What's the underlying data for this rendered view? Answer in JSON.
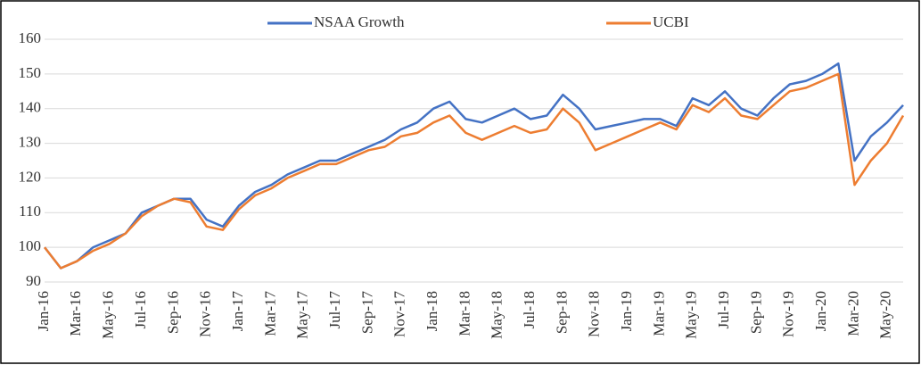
{
  "chart_data": {
    "type": "line",
    "categories": [
      "Jan-16",
      null,
      "Mar-16",
      null,
      "May-16",
      null,
      "Jul-16",
      null,
      "Sep-16",
      null,
      "Nov-16",
      null,
      "Jan-17",
      null,
      "Mar-17",
      null,
      "May-17",
      null,
      "Jul-17",
      null,
      "Sep-17",
      null,
      "Nov-17",
      null,
      "Jan-18",
      null,
      "Mar-18",
      null,
      "May-18",
      null,
      "Jul-18",
      null,
      "Sep-18",
      null,
      "Nov-18",
      null,
      "Jan-19",
      null,
      "Mar-19",
      null,
      "May-19",
      null,
      "Jul-19",
      null,
      "Sep-19",
      null,
      "Nov-19",
      null,
      "Jan-20",
      null,
      "Mar-20",
      null,
      "May-20",
      null
    ],
    "series": [
      {
        "name": "NSAA Growth",
        "color": "#4472c4",
        "values": [
          100,
          94,
          96,
          100,
          102,
          104,
          110,
          112,
          114,
          114,
          108,
          106,
          112,
          116,
          118,
          121,
          123,
          125,
          125,
          127,
          129,
          131,
          134,
          136,
          140,
          142,
          137,
          136,
          138,
          140,
          137,
          138,
          144,
          140,
          134,
          135,
          136,
          137,
          137,
          135,
          143,
          141,
          145,
          140,
          138,
          143,
          147,
          148,
          150,
          153,
          125,
          132,
          136,
          141
        ]
      },
      {
        "name": "UCBI",
        "color": "#ed7d31",
        "values": [
          100,
          94,
          96,
          99,
          101,
          104,
          109,
          112,
          114,
          113,
          106,
          105,
          111,
          115,
          117,
          120,
          122,
          124,
          124,
          126,
          128,
          129,
          132,
          133,
          136,
          138,
          133,
          131,
          133,
          135,
          133,
          134,
          140,
          136,
          128,
          130,
          132,
          134,
          136,
          134,
          141,
          139,
          143,
          138,
          137,
          141,
          145,
          146,
          148,
          150,
          118,
          125,
          130,
          138
        ]
      }
    ],
    "ylim": [
      90,
      160
    ],
    "yticks": [
      90,
      100,
      110,
      120,
      130,
      140,
      150,
      160
    ],
    "grid": true,
    "legend": "top"
  }
}
